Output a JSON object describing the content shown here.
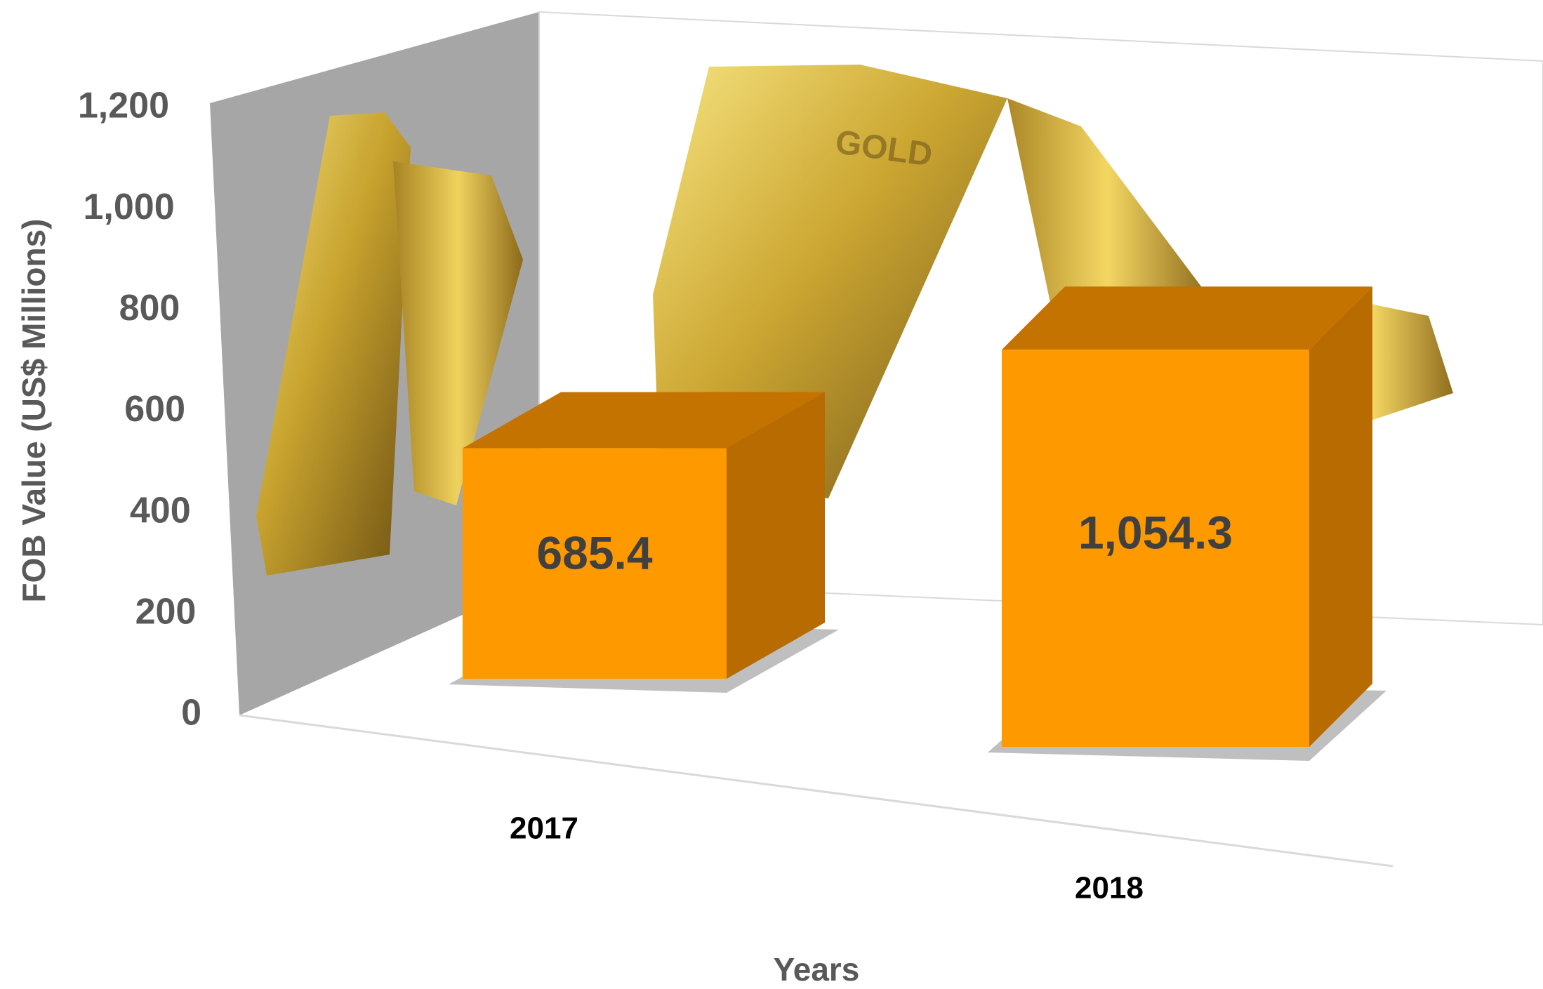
{
  "chart_data": {
    "type": "bar3d",
    "y_label": "FOB Value (US$ Millions)",
    "x_label": "Years",
    "categories": [
      "2017",
      "2018"
    ],
    "values": [
      685.4,
      1054.3
    ],
    "value_labels": [
      "685.4",
      "1,054.3"
    ],
    "color": "#ff9900",
    "ylim": [
      0,
      1200
    ],
    "yticks": [
      0,
      200,
      400,
      600,
      800,
      {
        "value": 1000,
        "label": "1,000"
      },
      {
        "value": 1200,
        "label": "1,200"
      }
    ]
  }
}
